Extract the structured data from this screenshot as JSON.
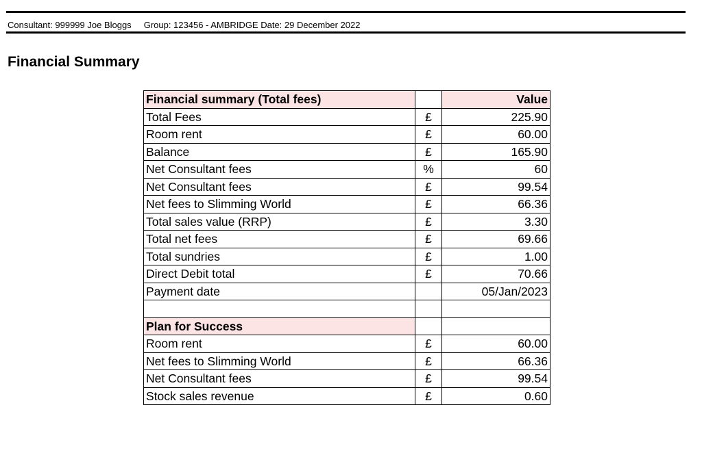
{
  "header": {
    "consultant": "Consultant: 999999 Joe Bloggs",
    "group_date": "Group: 123456 - AMBRIDGE Date: 29 December 2022"
  },
  "page_title": "Financial Summary",
  "table": {
    "section1_title": "Financial summary (Total fees)",
    "value_header": "Value",
    "rows": [
      {
        "label": "Total Fees",
        "unit": "£",
        "value": "225.90"
      },
      {
        "label": "Room rent",
        "unit": "£",
        "value": "60.00"
      },
      {
        "label": "Balance",
        "unit": "£",
        "value": "165.90"
      },
      {
        "label": "Net Consultant fees",
        "unit": "%",
        "value": "60"
      },
      {
        "label": "Net Consultant fees",
        "unit": "£",
        "value": "99.54"
      },
      {
        "label": "Net fees to Slimming World",
        "unit": "£",
        "value": "66.36"
      },
      {
        "label": "Total sales value (RRP)",
        "unit": "£",
        "value": "3.30"
      },
      {
        "label": "Total net fees",
        "unit": "£",
        "value": "69.66"
      },
      {
        "label": "Total sundries",
        "unit": "£",
        "value": "1.00"
      },
      {
        "label": "Direct Debit total",
        "unit": "£",
        "value": "70.66"
      },
      {
        "label": "Payment date",
        "unit": "",
        "value": "05/Jan/2023"
      }
    ],
    "section2_title": "Plan for Success",
    "rows2": [
      {
        "label": "Room rent",
        "unit": "£",
        "value": "60.00"
      },
      {
        "label": "Net fees to Slimming World",
        "unit": "£",
        "value": "66.36"
      },
      {
        "label": "Net Consultant fees",
        "unit": "£",
        "value": "99.54"
      },
      {
        "label": "Stock sales revenue",
        "unit": "£",
        "value": "0.60"
      }
    ]
  }
}
